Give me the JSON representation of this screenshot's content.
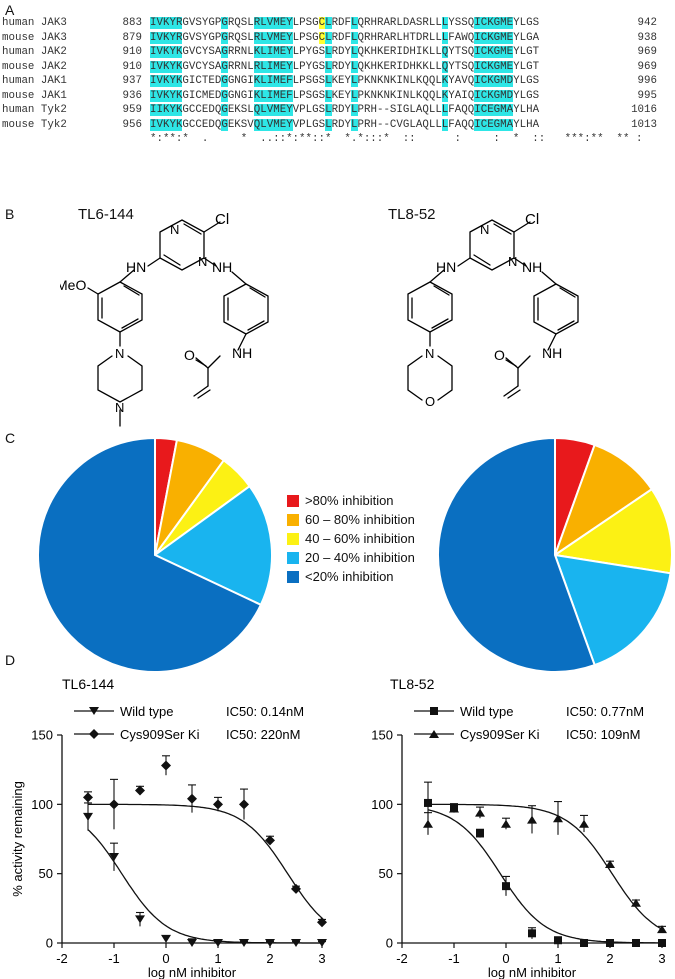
{
  "panels": {
    "A": "A",
    "B": "B",
    "C": "C",
    "D": "D"
  },
  "alignment": {
    "rows": [
      {
        "species": "human",
        "gene": "JAK3",
        "start": "883",
        "seq": "IVKYRGVSYGPGRQSLRLVMEYLPSGCLRDFLQRHRARLDASRLLLYSSQICKGMEYLGS",
        "end": "942"
      },
      {
        "species": "mouse",
        "gene": "JAK3",
        "start": "879",
        "seq": "IVKYRGVSYGPGRQSLRLVMEYLPSGCLRDFLQRHRARLHTDRLLLFAWQICKGMEYLGA",
        "end": "938"
      },
      {
        "species": "human",
        "gene": "JAK2",
        "start": "910",
        "seq": "IVKYKGVCYSAGRRNLKLIMEYLPYGSLRDYLQKHKERIDHIKLLQYTSQICKGMEYLGT",
        "end": "969"
      },
      {
        "species": "mouse",
        "gene": "JAK2",
        "start": "910",
        "seq": "IVKYKGVCYSAGRRNLRLIMEYLPYGSLRDYLQKHKERIDHKKLLQYTSQICKGMEYLGT",
        "end": "969"
      },
      {
        "species": "human",
        "gene": "JAK1",
        "start": "937",
        "seq": "IVKYKGICTEDGGNGIKLIMEFLPSGSLKEYLPKNKNKINLKQQLKYAVQICKGMDYLGS",
        "end": "996"
      },
      {
        "species": "mouse",
        "gene": "JAK1",
        "start": "936",
        "seq": "IVKYKGICMEDGGNGIKLIMEFLPSGSLKEYLPKNKNKINLKQQLKYAIQICKGMDYLGS",
        "end": "995"
      },
      {
        "species": "human",
        "gene": "Tyk2",
        "start": "959",
        "seq": "IIKYKGCCEDQGEKSLQLVMEYVPLGSLRDYLPRH--SIGLAQLLLFAQQICEGMAYLHA",
        "end": "1016"
      },
      {
        "species": "mouse",
        "gene": "Tyk2",
        "start": "956",
        "seq": "IVKYKGCCEDQGEKSVQLVMEYVPLGSLRDYLPRH--CVGLAQLLLFAQQICEGMAYLHA",
        "end": "1013"
      }
    ],
    "consensus": "*:**:*  .     *  ..::*:**::*  *.*:::*  ::      :     :  *  ::   ***:**  ** :"
  },
  "structures": {
    "left_title": "TL6-144",
    "right_title": "TL8-52",
    "atoms": {
      "cl": "Cl",
      "n": "N",
      "nh": "NH",
      "hn": "HN",
      "o": "O",
      "meo": "MeO"
    }
  },
  "legend": [
    {
      "label": ">80% inhibition",
      "color": "#e8191c"
    },
    {
      "label": "60 – 80% inhibition",
      "color": "#f9b000"
    },
    {
      "label": "40 – 60% inhibition",
      "color": "#fcf114"
    },
    {
      "label": "20 – 40% inhibition",
      "color": "#19b4ef"
    },
    {
      "label": "<20% inhibition",
      "color": "#0a6fc1"
    }
  ],
  "pies": [
    {
      "name": "TL6-144",
      "fractions": [
        0.03,
        0.07,
        0.05,
        0.17,
        0.68
      ]
    },
    {
      "name": "TL8-52",
      "fractions": [
        0.055,
        0.1,
        0.12,
        0.17,
        0.555
      ]
    }
  ],
  "chart_data": [
    {
      "type": "scatter",
      "title": "TL6-144",
      "xlabel": "log nM inhibitor",
      "ylabel": "% activity remaining",
      "xlim": [
        -2,
        3
      ],
      "ylim": [
        0,
        150
      ],
      "xticks": [
        "-2",
        "-1",
        "0",
        "1",
        "2",
        "3"
      ],
      "yticks": [
        "0",
        "50",
        "100",
        "150"
      ],
      "legend_position": "top",
      "series": [
        {
          "name": "Wild type",
          "ic50_label": "IC50: 0.14nM",
          "marker": "triangle-down",
          "log_ic50": -0.85,
          "x": [
            -1.5,
            -1.0,
            -0.5,
            0.0,
            0.5,
            1.0,
            1.5,
            2.0,
            2.5,
            3.0
          ],
          "y": [
            91,
            62,
            17,
            3,
            0,
            0,
            0,
            0,
            0,
            0
          ],
          "err": [
            10,
            10,
            5,
            2,
            3,
            1,
            1,
            1,
            1,
            1
          ]
        },
        {
          "name": "Cys909Ser Ki",
          "ic50_label": "IC50: 220nM",
          "marker": "diamond",
          "log_ic50": 2.34,
          "x": [
            -1.5,
            -1.0,
            -0.5,
            0.0,
            0.5,
            1.0,
            1.5,
            2.0,
            2.5,
            3.0
          ],
          "y": [
            105,
            100,
            110,
            128,
            104,
            100,
            100,
            74,
            39,
            15
          ],
          "err": [
            4,
            18,
            3,
            7,
            10,
            5,
            11,
            3,
            2,
            2
          ]
        }
      ]
    },
    {
      "type": "scatter",
      "title": "TL8-52",
      "xlabel": "log nM inhibitor",
      "ylabel": "",
      "xlim": [
        -2,
        3
      ],
      "ylim": [
        0,
        150
      ],
      "xticks": [
        "-2",
        "-1",
        "0",
        "1",
        "2",
        "3"
      ],
      "yticks": [
        "0",
        "50",
        "100",
        "150"
      ],
      "legend_position": "top",
      "series": [
        {
          "name": "Wild type",
          "ic50_label": "IC50: 0.77nM",
          "marker": "square",
          "log_ic50": -0.11,
          "x": [
            -1.5,
            -1.0,
            -0.5,
            0.0,
            0.5,
            1.0,
            1.5,
            2.0,
            2.5,
            3.0
          ],
          "y": [
            101,
            98,
            79,
            41,
            7,
            2,
            0,
            0,
            0,
            0
          ],
          "err": [
            15,
            2,
            3,
            7,
            4,
            1,
            1,
            1,
            1,
            1
          ]
        },
        {
          "name": "Cys909Ser Ki",
          "ic50_label": "IC50: 109nM",
          "marker": "triangle-up",
          "log_ic50": 2.04,
          "x": [
            -1.5,
            -1.0,
            -0.5,
            0.0,
            0.5,
            1.0,
            1.5,
            2.0,
            2.5,
            3.0
          ],
          "y": [
            86,
            97,
            94,
            86,
            89,
            90,
            86,
            57,
            29,
            10
          ],
          "err": [
            8,
            3,
            4,
            4,
            10,
            12,
            6,
            2,
            2,
            2
          ]
        }
      ]
    }
  ]
}
